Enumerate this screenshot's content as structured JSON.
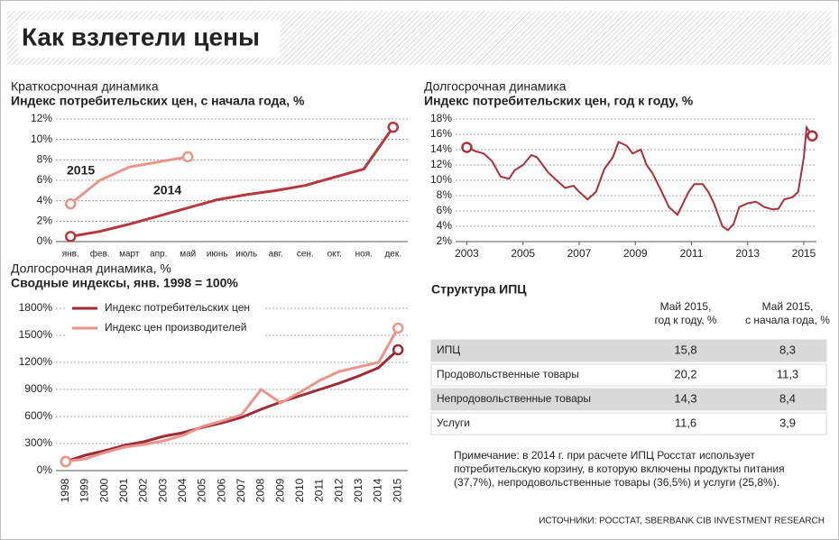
{
  "title": "Как взлетели цены",
  "chart_data": [
    {
      "type": "line",
      "title": "Краткосрочная динамика",
      "subtitle": "Индекс потребительских цен, с начала года, %",
      "categories": [
        "янв.",
        "фев.",
        "март",
        "апр.",
        "май",
        "июнь",
        "июль",
        "авг.",
        "сен.",
        "окт.",
        "ноя.",
        "дек."
      ],
      "series": [
        {
          "name": "2015",
          "color": "#e8958a",
          "values": [
            3.7,
            6.0,
            7.3,
            7.8,
            8.3,
            null,
            null,
            null,
            null,
            null,
            null,
            null
          ]
        },
        {
          "name": "2014",
          "color": "#b5383e",
          "values": [
            0.5,
            1.0,
            1.7,
            2.5,
            3.3,
            4.1,
            4.6,
            5.0,
            5.5,
            6.3,
            7.1,
            11.2
          ]
        }
      ],
      "ylim": [
        0,
        12
      ],
      "yticks": [
        {
          "value": 0,
          "label": "0%"
        },
        {
          "value": 2,
          "label": "2%"
        },
        {
          "value": 4,
          "label": "4%"
        },
        {
          "value": 6,
          "label": "6%"
        },
        {
          "value": 8,
          "label": "8%"
        },
        {
          "value": 10,
          "label": "10%"
        },
        {
          "value": 12,
          "label": "12%"
        }
      ],
      "grid": true
    },
    {
      "type": "line",
      "title": "Долгосрочная динамика",
      "subtitle": "Индекс потребительских цен, год к году, %",
      "x": [
        2003.0,
        2003.3,
        2003.6,
        2003.9,
        2004.2,
        2004.5,
        2004.7,
        2005.0,
        2005.3,
        2005.5,
        2005.9,
        2006.2,
        2006.5,
        2006.8,
        2007.0,
        2007.3,
        2007.6,
        2007.9,
        2008.2,
        2008.4,
        2008.7,
        2008.9,
        2009.2,
        2009.4,
        2009.6,
        2009.9,
        2010.2,
        2010.5,
        2010.7,
        2010.9,
        2011.1,
        2011.4,
        2011.6,
        2011.8,
        2012.1,
        2012.3,
        2012.5,
        2012.7,
        2013.0,
        2013.3,
        2013.6,
        2013.9,
        2014.1,
        2014.3,
        2014.6,
        2014.8,
        2015.0,
        2015.1,
        2015.3
      ],
      "series": [
        {
          "name": "Индекс потребительских цен",
          "color": "#a8323a",
          "values": [
            14.3,
            13.8,
            13.5,
            12.5,
            10.5,
            10.2,
            11.3,
            12.0,
            13.3,
            13.0,
            11.0,
            10.0,
            9.0,
            9.3,
            8.5,
            7.5,
            8.5,
            11.5,
            13.0,
            15.0,
            14.5,
            13.5,
            14.0,
            12.0,
            11.0,
            8.8,
            6.5,
            5.5,
            7.0,
            8.5,
            9.5,
            9.5,
            8.5,
            7.0,
            4.0,
            3.5,
            4.3,
            6.5,
            7.0,
            7.2,
            6.5,
            6.2,
            6.3,
            7.5,
            7.8,
            8.5,
            13.0,
            16.9,
            15.8
          ]
        }
      ],
      "xlim": [
        2002.6,
        2015.45
      ],
      "xticks": [
        2003,
        2005,
        2007,
        2009,
        2011,
        2013,
        2015
      ],
      "ylim": [
        2,
        18
      ],
      "yticks": [
        {
          "value": 2,
          "label": "2%"
        },
        {
          "value": 4,
          "label": "4%"
        },
        {
          "value": 6,
          "label": "6%"
        },
        {
          "value": 8,
          "label": "8%"
        },
        {
          "value": 10,
          "label": "10%"
        },
        {
          "value": 12,
          "label": "12%"
        },
        {
          "value": 14,
          "label": "14%"
        },
        {
          "value": 16,
          "label": "16%"
        },
        {
          "value": 18,
          "label": "18%"
        }
      ],
      "grid": true
    },
    {
      "type": "line",
      "title": "Долгосрочная динамика, %",
      "subtitle": "Сводные индексы, янв. 1998 = 100%",
      "categories": [
        "1998",
        "1999",
        "2000",
        "2001",
        "2002",
        "2003",
        "2004",
        "2005",
        "2006",
        "2007",
        "2008",
        "2009",
        "2010",
        "2011",
        "2012",
        "2013",
        "2014",
        "2015"
      ],
      "series": [
        {
          "name": "Индекс потребительских цен",
          "color": "#9e2a35",
          "values": [
            100,
            170,
            220,
            280,
            320,
            380,
            420,
            480,
            530,
            590,
            680,
            760,
            830,
            900,
            970,
            1050,
            1140,
            1340
          ]
        },
        {
          "name": "Индекс цен производителей",
          "color": "#e8958a",
          "values": [
            100,
            130,
            200,
            260,
            290,
            330,
            390,
            490,
            550,
            620,
            900,
            750,
            870,
            1000,
            1100,
            1150,
            1200,
            1580
          ]
        }
      ],
      "ylim": [
        0,
        1800
      ],
      "yticks": [
        {
          "value": 0,
          "label": "0%"
        },
        {
          "value": 300,
          "label": "300%"
        },
        {
          "value": 600,
          "label": "600%"
        },
        {
          "value": 900,
          "label": "900%"
        },
        {
          "value": 1200,
          "label": "1200%"
        },
        {
          "value": 1500,
          "label": "1500%"
        },
        {
          "value": 1800,
          "label": "1800%"
        }
      ],
      "grid": true
    }
  ],
  "table": {
    "title": "Структура ИПЦ",
    "columns": [
      [
        "Май 2015,",
        "год к году, %"
      ],
      [
        "Май 2015,",
        "с начала года, %"
      ]
    ],
    "rows": [
      [
        "ИПЦ",
        "15,8",
        "8,3"
      ],
      [
        "Продовольственные товары",
        "20,2",
        "11,3"
      ],
      [
        "Непродовольственные товары",
        "14,3",
        "8,4"
      ],
      [
        "Услуги",
        "11,6",
        "3,9"
      ]
    ]
  },
  "note": [
    "Примечание: в 2014 г. при расчете ИПЦ Росстат использует",
    "потребительскую корзину, в которую включены продукты питания",
    "(37,7%), непродовольственные товары (36,5%) и услуги (25,8%)."
  ],
  "sources": "ИСТОЧНИКИ: РОССТАТ, SBERBANK CIB INVESTMENT RESEARCH"
}
